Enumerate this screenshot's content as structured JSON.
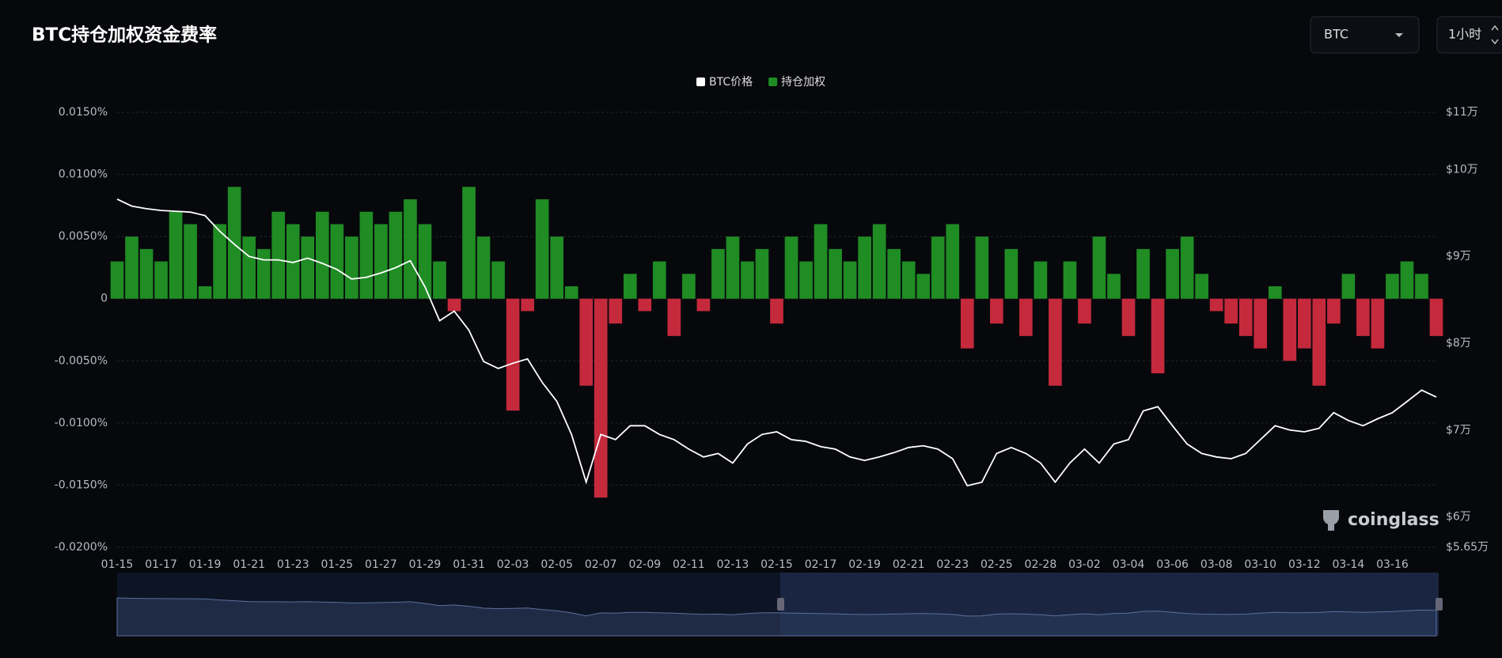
{
  "header": {
    "title": "BTC持仓加权资金费率",
    "symbol": "BTC",
    "interval": "1小时"
  },
  "watermark": "coinglass",
  "chart_data": {
    "type": "bar",
    "categories": [
      "01-15",
      null,
      null,
      "01-17",
      null,
      null,
      "01-19",
      null,
      null,
      "01-21",
      null,
      null,
      "01-23",
      null,
      null,
      "01-25",
      null,
      null,
      "01-27",
      null,
      null,
      "01-29",
      null,
      null,
      "01-31",
      null,
      null,
      "02-03",
      null,
      null,
      "02-05",
      null,
      null,
      "02-07",
      null,
      null,
      "02-09",
      null,
      null,
      "02-11",
      null,
      null,
      "02-13",
      null,
      null,
      "02-15",
      null,
      null,
      "02-17",
      null,
      null,
      "02-19",
      null,
      null,
      "02-21",
      null,
      null,
      "02-23",
      null,
      null,
      "02-25",
      null,
      null,
      "02-28",
      null,
      null,
      "03-02",
      null,
      null,
      "03-04",
      null,
      null,
      "03-06",
      null,
      null,
      "03-08",
      null,
      null,
      "03-10",
      null,
      null,
      "03-12",
      null,
      null,
      "03-14",
      null,
      null,
      "03-16",
      null,
      null,
      null
    ],
    "series": [
      {
        "name": "BTC价格",
        "color": "#ffffff",
        "axis": "y2",
        "type": "line",
        "values": [
          96600,
          95800,
          95500,
          95300,
          95200,
          95100,
          94700,
          92900,
          91400,
          90000,
          89600,
          89600,
          89300,
          89800,
          89200,
          88500,
          87400,
          87600,
          88100,
          88700,
          89500,
          86500,
          82600,
          83700,
          81500,
          77900,
          77100,
          77700,
          78200,
          75500,
          73300,
          69500,
          64000,
          69500,
          68900,
          70500,
          70500,
          69500,
          68900,
          67800,
          66900,
          67300,
          66200,
          68400,
          69500,
          69800,
          68900,
          68700,
          68100,
          67800,
          66900,
          66500,
          66900,
          67400,
          68000,
          68200,
          67800,
          66700,
          63600,
          64000,
          67300,
          68000,
          67300,
          66200,
          64000,
          66200,
          67800,
          66200,
          68400,
          68900,
          72200,
          72700,
          70500,
          68400,
          67300,
          66900,
          66700,
          67300,
          68900,
          70500,
          70000,
          69800,
          70200,
          72000,
          71100,
          70500,
          71300,
          72000,
          73300,
          74600,
          73800
        ]
      },
      {
        "name": "持仓加权",
        "color": "#1f8c24",
        "negative_color": "#c42a3c",
        "values": [
          0.003,
          0.005,
          0.004,
          0.003,
          0.007,
          0.006,
          0.001,
          0.006,
          0.009,
          0.005,
          0.004,
          0.007,
          0.006,
          0.005,
          0.007,
          0.006,
          0.005,
          0.007,
          0.006,
          0.007,
          0.008,
          0.006,
          0.003,
          -0.001,
          0.009,
          0.005,
          0.003,
          -0.009,
          -0.001,
          0.008,
          0.005,
          0.001,
          -0.007,
          -0.016,
          -0.002,
          0.002,
          -0.001,
          0.003,
          -0.003,
          0.002,
          -0.001,
          0.004,
          0.005,
          0.003,
          0.004,
          -0.002,
          0.005,
          0.003,
          0.006,
          0.004,
          0.003,
          0.005,
          0.006,
          0.004,
          0.003,
          0.002,
          0.005,
          0.006,
          -0.004,
          0.005,
          -0.002,
          0.004,
          -0.003,
          0.003,
          -0.007,
          0.003,
          -0.002,
          0.005,
          0.002,
          -0.003,
          0.004,
          -0.006,
          0.004,
          0.005,
          0.002,
          -0.001,
          -0.002,
          -0.003,
          -0.004,
          0.001,
          -0.005,
          -0.004,
          -0.007,
          -0.002,
          0.002,
          -0.003,
          -0.004,
          0.002,
          0.003,
          0.002,
          -0.003
        ]
      }
    ],
    "ylim": [
      -0.02,
      0.015
    ],
    "yticks": [
      {
        "value": 0.015,
        "label": "0.0150%"
      },
      {
        "value": 0.01,
        "label": "0.0100%"
      },
      {
        "value": 0.005,
        "label": "0.0050%"
      },
      0,
      {
        "value": -0.005,
        "label": "-0.0050%"
      },
      {
        "value": -0.01,
        "label": "-0.0100%"
      },
      {
        "value": -0.015,
        "label": "-0.0150%"
      },
      {
        "value": -0.02,
        "label": "-0.0200%"
      }
    ],
    "y2lim": [
      56500,
      106600
    ],
    "y2ticks": [
      {
        "value": 110000,
        "label": "$11万"
      },
      {
        "value": 100000,
        "label": "$10万"
      },
      {
        "value": 90000,
        "label": "$9万"
      },
      {
        "value": 80000,
        "label": "$8万"
      },
      {
        "value": 70000,
        "label": "$7万"
      },
      {
        "value": 60000,
        "label": "$6万"
      },
      {
        "value": 56500,
        "label": "$5.65万"
      }
    ],
    "grid": true,
    "legend": "top"
  }
}
